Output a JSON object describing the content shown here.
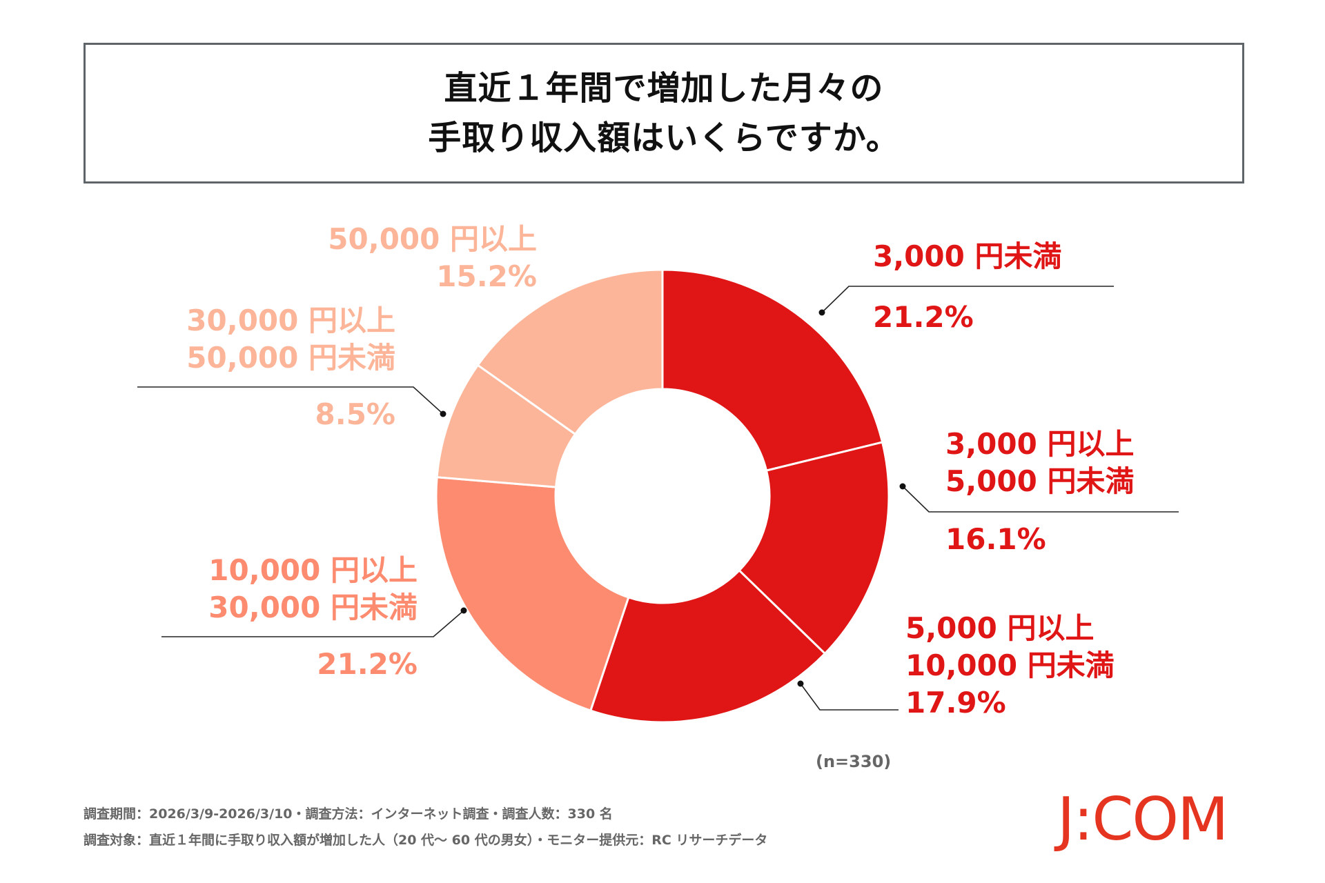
{
  "title": {
    "line1": "直近１年間で増加した月々の",
    "line2": "手取り収入額はいくらですか。"
  },
  "chart_data": {
    "type": "pie",
    "donut": true,
    "start": "top, clockwise",
    "categories": [
      "3,000円未満",
      "3,000円以上5,000円未満",
      "5,000円以上10,000円未満",
      "10,000円以上30,000円未満",
      "30,000円以上50,000円未満",
      "50,000円以上"
    ],
    "values": [
      21.2,
      16.1,
      17.9,
      21.2,
      8.5,
      15.2
    ],
    "colors": [
      "#e01515",
      "#e01515",
      "#e01515",
      "#fd8b70",
      "#fcb598",
      "#fcb598"
    ],
    "labels": [
      {
        "line1": "3,000 円未満",
        "line2": "",
        "pct": "21.2%"
      },
      {
        "line1": "3,000 円以上",
        "line2": "5,000 円未満",
        "pct": "16.1%"
      },
      {
        "line1": "5,000 円以上",
        "line2": "10,000 円未満",
        "pct": "17.9%"
      },
      {
        "line1": "10,000 円以上",
        "line2": "30,000 円未満",
        "pct": "21.2%"
      },
      {
        "line1": "30,000 円以上",
        "line2": "50,000 円未満",
        "pct": "8.5%"
      },
      {
        "line1": "50,000 円以上",
        "line2": "",
        "pct": "15.2%"
      }
    ]
  },
  "sample_note": "(n=330)",
  "footer": {
    "line1": "調査期間：2026/3/9-2026/3/10・調査方法：インターネット調査・調査人数：330 名",
    "line2": "調査対象：直近１年間に手取り収入額が増加した人（20 代～ 60 代の男女）・モニター提供元：RC リサーチデータ"
  },
  "logo": "J:COM"
}
